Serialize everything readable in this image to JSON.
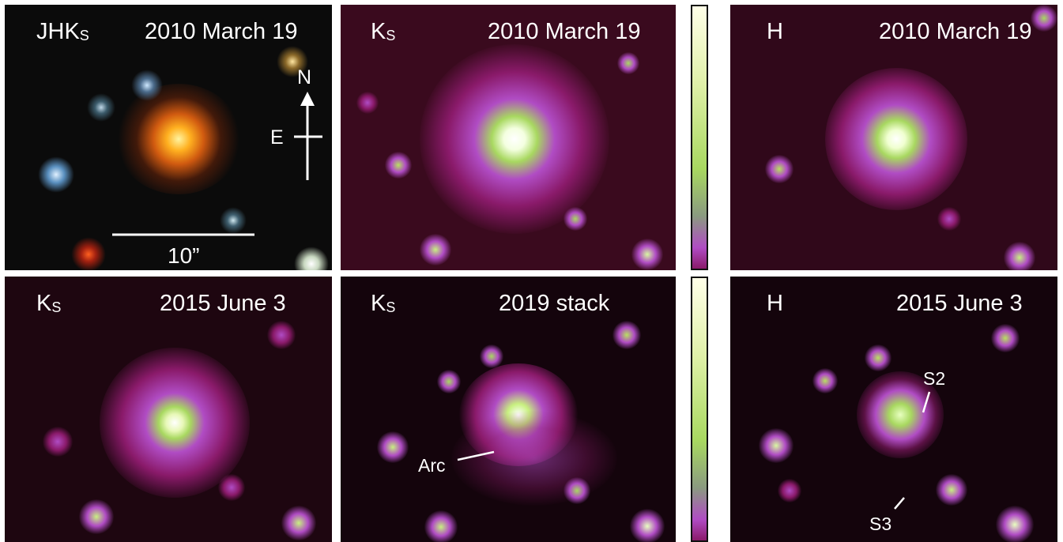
{
  "panels": [
    {
      "band": "JHK",
      "band_sub": "S",
      "date": "2010 March 19"
    },
    {
      "band": "K",
      "band_sub": "S",
      "date": "2010 March 19"
    },
    {
      "band": "H",
      "band_sub": "",
      "date": "2010 March 19"
    },
    {
      "band": "K",
      "band_sub": "S",
      "date": "2015 June 3"
    },
    {
      "band": "K",
      "band_sub": "S",
      "date": "2019 stack"
    },
    {
      "band": "H",
      "band_sub": "",
      "date": "2015 June 3"
    }
  ],
  "compass": {
    "north": "N",
    "east": "E"
  },
  "scale_bar": {
    "label": "10”"
  },
  "annotations": {
    "arc": "Arc",
    "s2": "S2",
    "s3": "S3"
  },
  "colors": {
    "colormap": [
      "#ffffe8",
      "#dff0a8",
      "#a8d860",
      "#b04cc4",
      "#8a1a6a",
      "#1a0510",
      "#000000"
    ],
    "rgb_source": "#ffb030",
    "background": "#000000"
  }
}
